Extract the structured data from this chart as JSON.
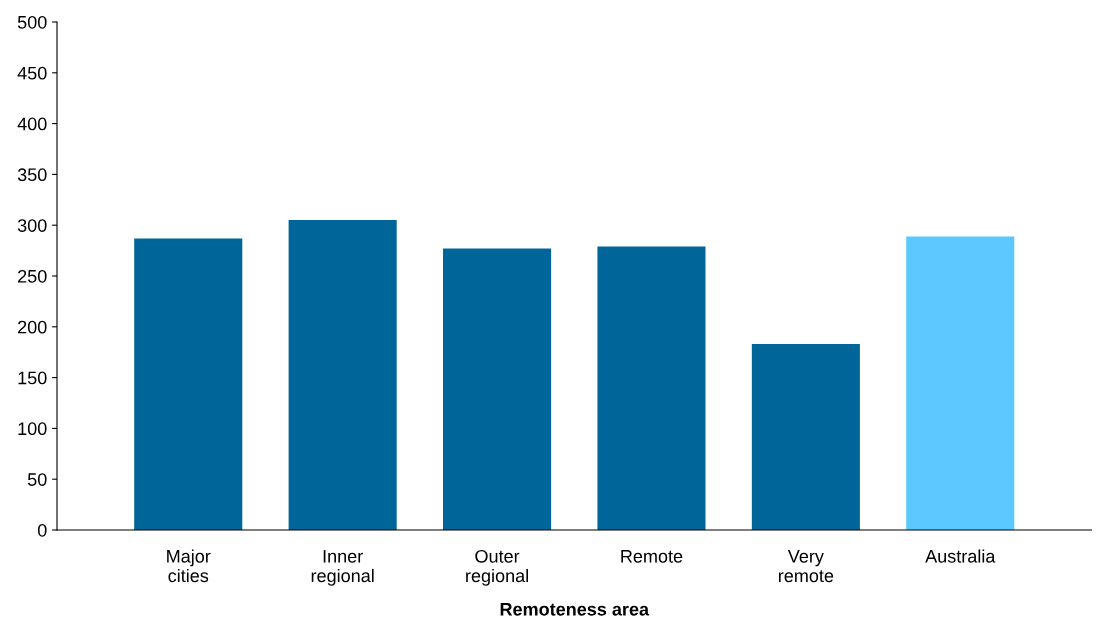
{
  "chart_data": {
    "type": "bar",
    "xlabel": "Remoteness area",
    "categories": [
      "Major\ncities",
      "Inner\nregional",
      "Outer\nregional",
      "Remote",
      "Very\nremote",
      "Australia"
    ],
    "values": [
      287,
      305,
      277,
      279,
      183,
      289
    ],
    "colors": [
      "#006699",
      "#006699",
      "#006699",
      "#006699",
      "#006699",
      "#5bc8ff"
    ],
    "ylim": [
      0,
      500
    ],
    "yticks": [
      0,
      50,
      100,
      150,
      200,
      250,
      300,
      350,
      400,
      450,
      500
    ],
    "grid": false
  }
}
